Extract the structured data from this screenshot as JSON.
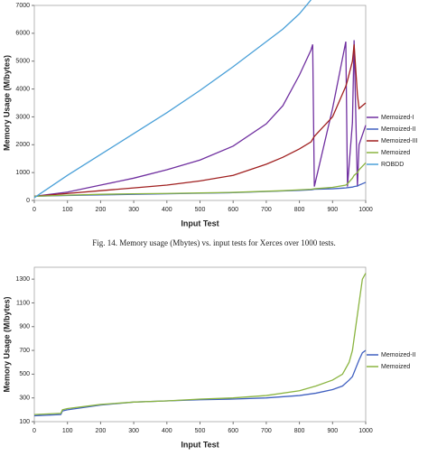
{
  "chart_data": [
    {
      "type": "line",
      "xlabel": "Input Test",
      "ylabel": "Memory Usage (M/bytes)",
      "caption": "Fig. 14.  Memory usage (Mbytes) vs. input tests for Xerces over 1000 tests.",
      "xlim": [
        0,
        1000
      ],
      "xticks": [
        0,
        100,
        200,
        300,
        400,
        500,
        600,
        700,
        800,
        900,
        1000
      ],
      "ylim": [
        0,
        7000
      ],
      "yticks": [
        0,
        1000,
        2000,
        3000,
        4000,
        5000,
        6000,
        7000
      ],
      "x": [
        0,
        100,
        200,
        300,
        400,
        500,
        600,
        700,
        750,
        800,
        835,
        840,
        845,
        900,
        940,
        945,
        960,
        965,
        975,
        980,
        1000
      ],
      "series": [
        {
          "name": "Memoized-I",
          "color": "#7030a0",
          "values": [
            150,
            300,
            550,
            800,
            1100,
            1450,
            1950,
            2750,
            3400,
            4500,
            5400,
            5600,
            500,
            3300,
            5700,
            500,
            2800,
            5750,
            500,
            2000,
            2700
          ]
        },
        {
          "name": "Memoized-II",
          "color": "#4060c0",
          "values": [
            150,
            180,
            200,
            220,
            240,
            260,
            280,
            320,
            340,
            360,
            380,
            390,
            400,
            420,
            450,
            460,
            480,
            500,
            520,
            550,
            650
          ]
        },
        {
          "name": "Memoized-III",
          "color": "#a02020",
          "values": [
            150,
            250,
            350,
            450,
            550,
            700,
            900,
            1300,
            1550,
            1850,
            2100,
            2200,
            2300,
            3000,
            4100,
            4300,
            5000,
            5600,
            3800,
            3300,
            3500
          ]
        },
        {
          "name": "Memoized",
          "color": "#8ab440",
          "values": [
            150,
            190,
            220,
            240,
            250,
            270,
            290,
            330,
            350,
            380,
            400,
            410,
            420,
            470,
            550,
            600,
            800,
            900,
            1000,
            1100,
            1350
          ]
        },
        {
          "name": "ROBDD",
          "color": "#4aa0d8",
          "values": [
            100,
            900,
            1650,
            2400,
            3150,
            3950,
            4800,
            5700,
            6150,
            6700,
            7200,
            null,
            null,
            null,
            null,
            null,
            null,
            null,
            null,
            null,
            null
          ]
        }
      ]
    },
    {
      "type": "line",
      "xlabel": "Input Test",
      "ylabel": "Memory Usage (M/bytes)",
      "xlim": [
        0,
        1000
      ],
      "xticks": [
        0,
        100,
        200,
        300,
        400,
        500,
        600,
        700,
        800,
        900,
        1000
      ],
      "ylim": [
        100,
        1400
      ],
      "yticks": [
        100,
        300,
        500,
        700,
        900,
        1100,
        1300
      ],
      "x": [
        0,
        80,
        85,
        100,
        200,
        300,
        400,
        500,
        600,
        700,
        800,
        850,
        900,
        930,
        950,
        960,
        970,
        980,
        990,
        1000
      ],
      "series": [
        {
          "name": "Memoized-II",
          "color": "#4060c0",
          "values": [
            150,
            160,
            190,
            200,
            240,
            265,
            275,
            285,
            290,
            300,
            320,
            340,
            370,
            400,
            450,
            480,
            550,
            620,
            680,
            700
          ]
        },
        {
          "name": "Memoized",
          "color": "#8ab440",
          "values": [
            160,
            170,
            200,
            210,
            245,
            265,
            275,
            290,
            300,
            320,
            360,
            400,
            450,
            500,
            600,
            700,
            900,
            1100,
            1300,
            1350
          ]
        }
      ]
    }
  ]
}
